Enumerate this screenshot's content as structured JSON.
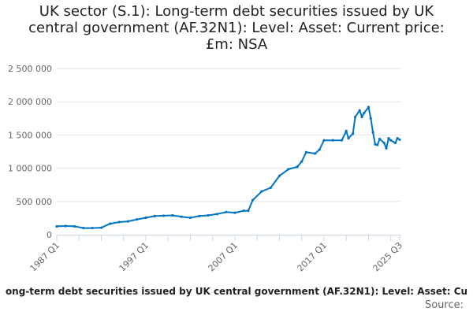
{
  "chart_data": {
    "type": "line",
    "title": "UK sector (S.1): Long-term debt securities issued by UK central government (AF.32N1): Level: Asset: Current price: £m: NSA",
    "xlabel": "ong-term debt securities issued by UK central government (AF.32N1): Level: Asset: Cu",
    "source_label": "Source:",
    "ylim": [
      0,
      2500000
    ],
    "yticks": [
      0,
      500000,
      1000000,
      1500000,
      2000000,
      2500000
    ],
    "ytick_labels": [
      "0",
      "500 000",
      "1 000 000",
      "1 500 000",
      "2 000 000",
      "2 500 000"
    ],
    "xticks": [
      "1987 Q1",
      "1997 Q1",
      "2007 Q1",
      "2017 Q1",
      "2025 Q3"
    ],
    "grid": true,
    "color": "#0075c4",
    "points": [
      [
        "1987 Q1",
        125000
      ],
      [
        "1988 Q1",
        130000
      ],
      [
        "1989 Q1",
        125000
      ],
      [
        "1990 Q1",
        100000
      ],
      [
        "1991 Q1",
        100000
      ],
      [
        "1992 Q1",
        105000
      ],
      [
        "1993 Q1",
        165000
      ],
      [
        "1994 Q1",
        190000
      ],
      [
        "1995 Q1",
        200000
      ],
      [
        "1996 Q1",
        230000
      ],
      [
        "1997 Q1",
        255000
      ],
      [
        "1998 Q1",
        280000
      ],
      [
        "1999 Q1",
        285000
      ],
      [
        "2000 Q1",
        290000
      ],
      [
        "2001 Q1",
        270000
      ],
      [
        "2002 Q1",
        255000
      ],
      [
        "2003 Q1",
        280000
      ],
      [
        "2004 Q1",
        290000
      ],
      [
        "2005 Q1",
        310000
      ],
      [
        "2006 Q1",
        340000
      ],
      [
        "2007 Q1",
        330000
      ],
      [
        "2008 Q1",
        360000
      ],
      [
        "2008 Q3",
        360000
      ],
      [
        "2009 Q1",
        520000
      ],
      [
        "2010 Q1",
        650000
      ],
      [
        "2011 Q1",
        705000
      ],
      [
        "2012 Q1",
        885000
      ],
      [
        "2013 Q1",
        985000
      ],
      [
        "2014 Q1",
        1020000
      ],
      [
        "2014 Q3",
        1100000
      ],
      [
        "2015 Q1",
        1240000
      ],
      [
        "2016 Q1",
        1220000
      ],
      [
        "2016 Q3",
        1280000
      ],
      [
        "2017 Q1",
        1420000
      ],
      [
        "2018 Q1",
        1420000
      ],
      [
        "2019 Q1",
        1420000
      ],
      [
        "2019 Q3",
        1560000
      ],
      [
        "2019 Q4",
        1450000
      ],
      [
        "2020 Q2",
        1520000
      ],
      [
        "2020 Q3",
        1770000
      ],
      [
        "2021 Q1",
        1870000
      ],
      [
        "2021 Q2",
        1770000
      ],
      [
        "2021 Q3",
        1830000
      ],
      [
        "2022 Q1",
        1920000
      ],
      [
        "2022 Q2",
        1750000
      ],
      [
        "2022 Q3",
        1540000
      ],
      [
        "2022 Q4",
        1360000
      ],
      [
        "2023 Q1",
        1350000
      ],
      [
        "2023 Q2",
        1440000
      ],
      [
        "2023 Q4",
        1380000
      ],
      [
        "2024 Q1",
        1300000
      ],
      [
        "2024 Q2",
        1450000
      ],
      [
        "2024 Q3",
        1420000
      ],
      [
        "2025 Q1",
        1380000
      ],
      [
        "2025 Q2",
        1450000
      ],
      [
        "2025 Q3",
        1430000
      ]
    ]
  }
}
